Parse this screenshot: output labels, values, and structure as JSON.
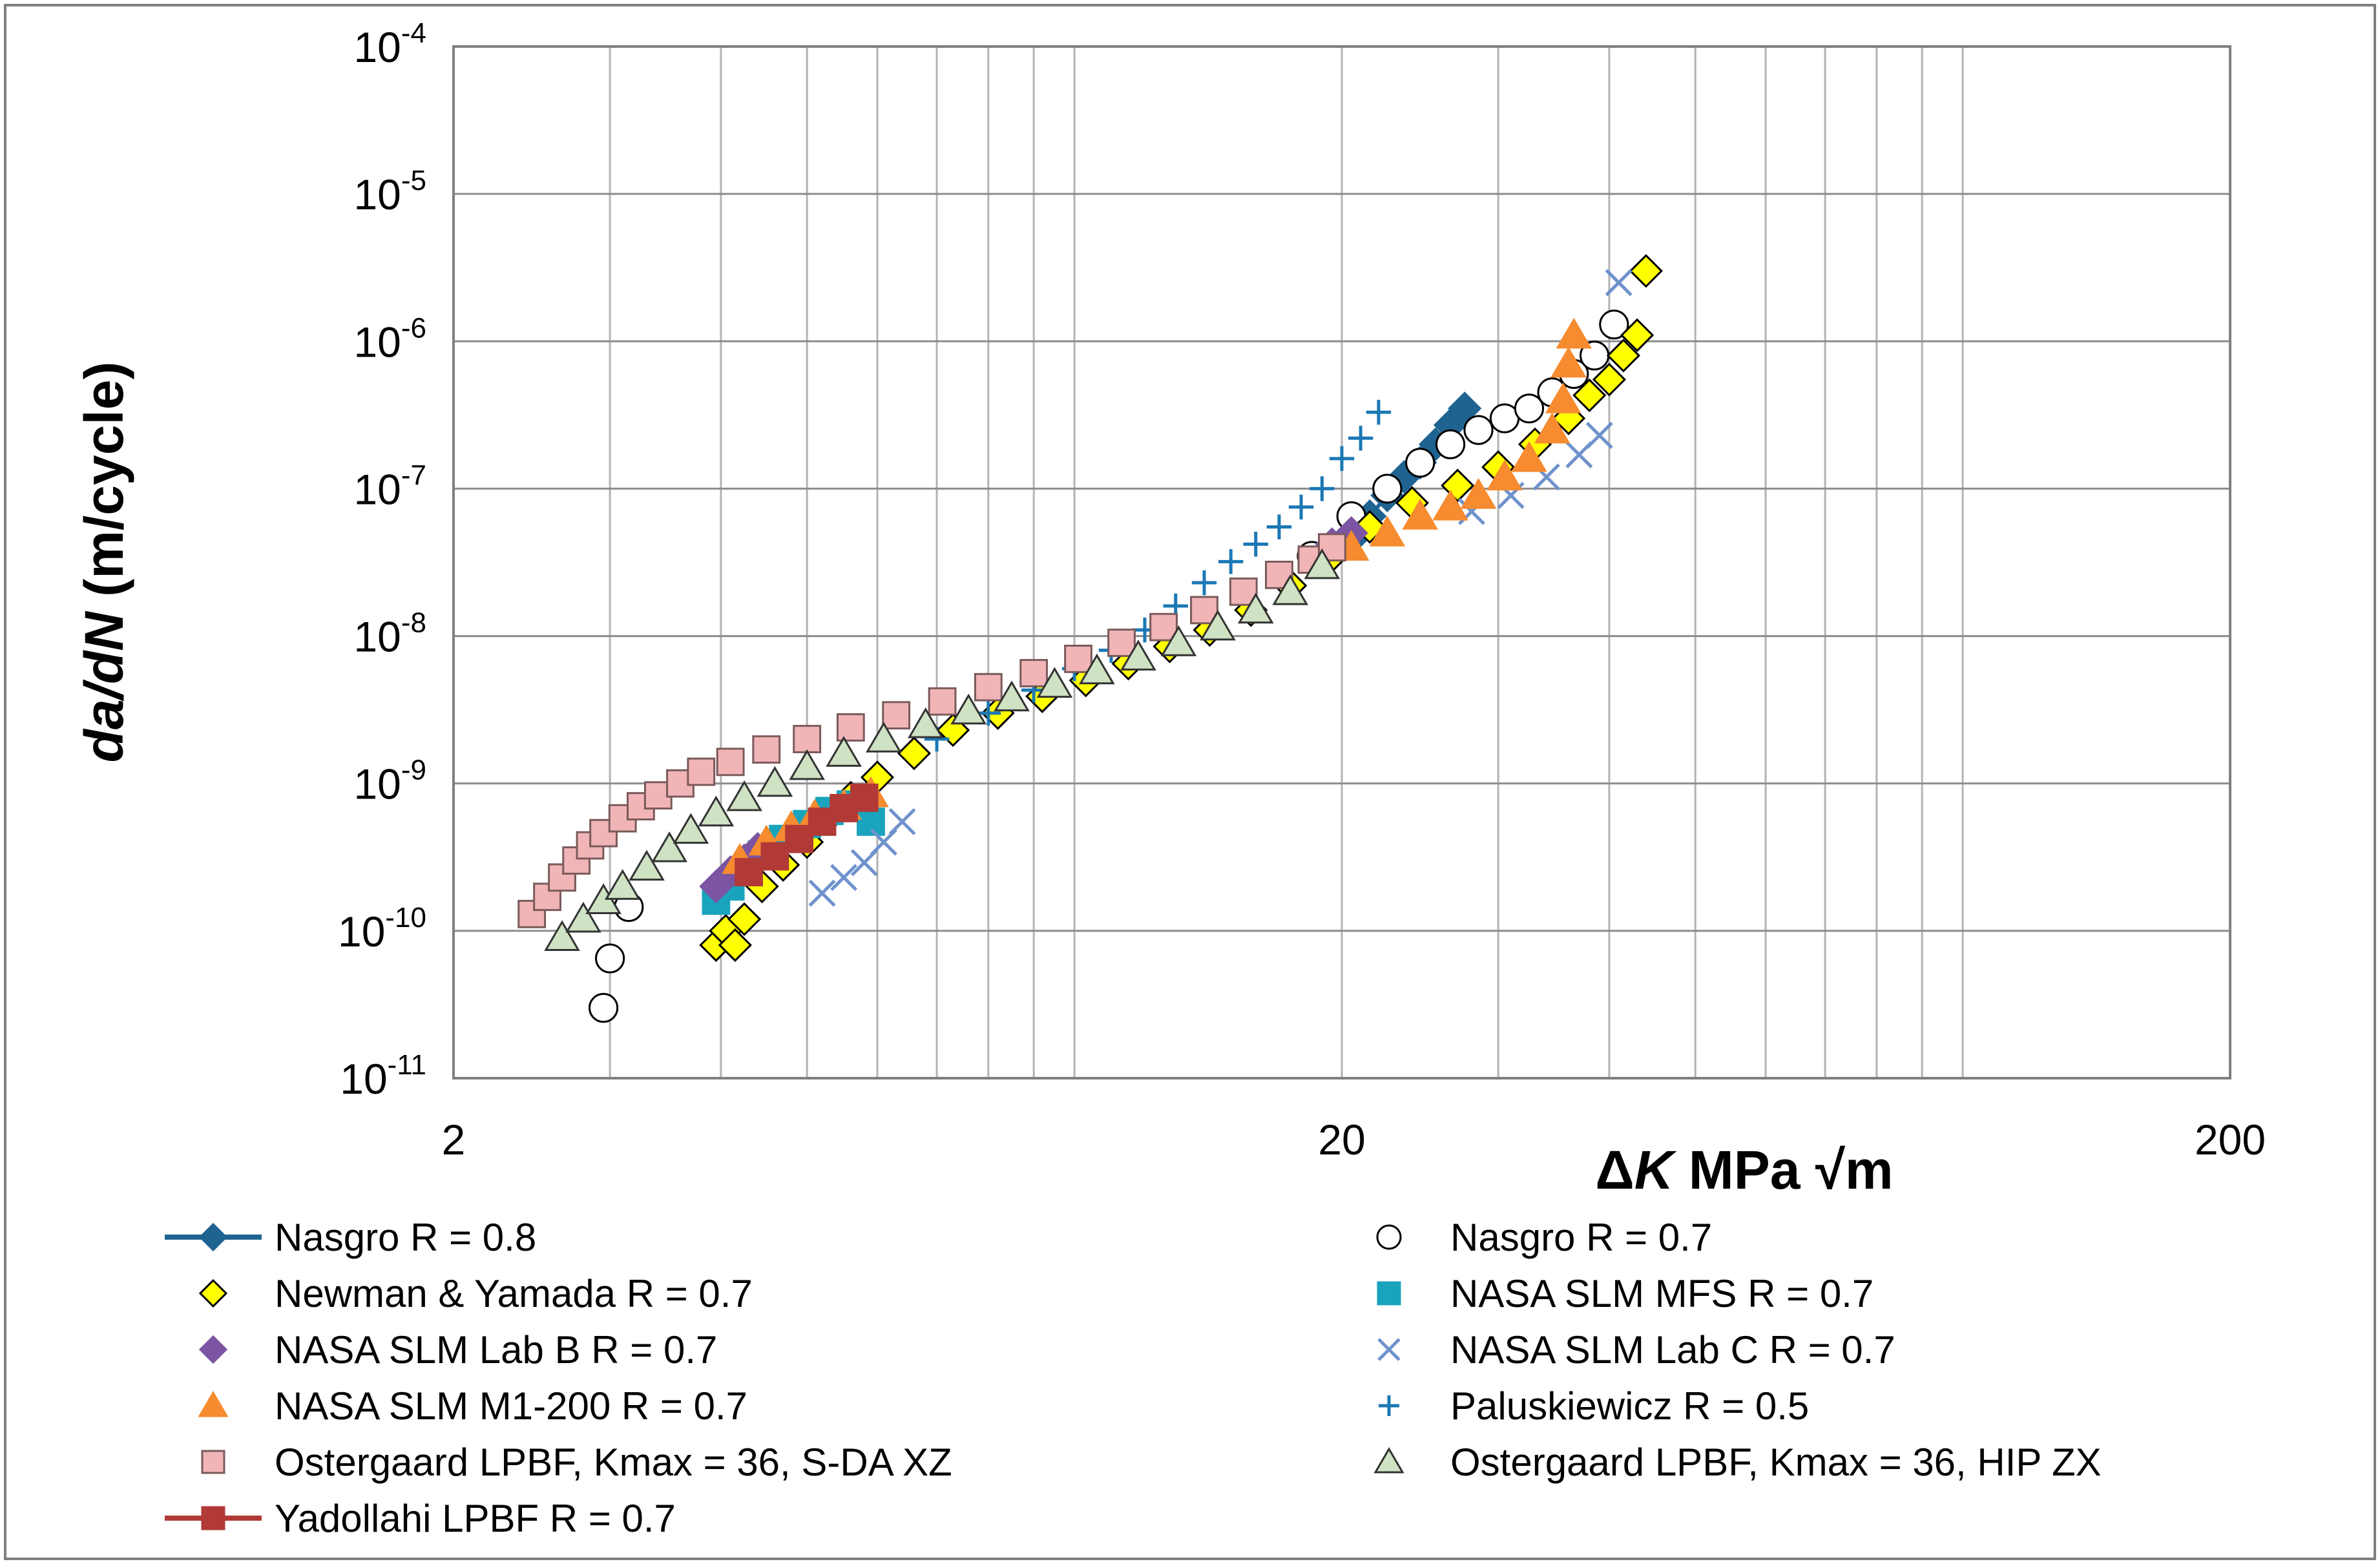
{
  "chart_data": {
    "type": "scatter",
    "xscale": "log",
    "yscale": "log",
    "xlim": [
      2,
      200
    ],
    "ylim": [
      1e-11,
      0.0001
    ],
    "x_ticks": [
      {
        "value": 2,
        "label": "2"
      },
      {
        "value": 20,
        "label": "20"
      },
      {
        "value": 200,
        "label": "200"
      }
    ],
    "y_ticks": [
      {
        "value": 0.0001,
        "base": "10",
        "exp": "-4"
      },
      {
        "value": 1e-05,
        "base": "10",
        "exp": "-5"
      },
      {
        "value": 1e-06,
        "base": "10",
        "exp": "-6"
      },
      {
        "value": 1e-07,
        "base": "10",
        "exp": "-7"
      },
      {
        "value": 1e-08,
        "base": "10",
        "exp": "-8"
      },
      {
        "value": 1e-09,
        "base": "10",
        "exp": "-9"
      },
      {
        "value": 1e-10,
        "base": "10",
        "exp": "-10"
      },
      {
        "value": 1e-11,
        "base": "10",
        "exp": "-11"
      }
    ],
    "ylabel": {
      "italic": "da/dN",
      "rest": " (m/cycle)"
    },
    "xlabel": {
      "delta": "Δ",
      "italic": "K",
      "rest": " MPa √m"
    },
    "grid": true,
    "legend_position": "bottom",
    "series": [
      {
        "name": "Nasgro R = 0.8",
        "marker": "diamond",
        "fill": "#1f6391",
        "stroke": "#1f6391",
        "line": true,
        "points": [
          [
            20.5,
            4.5e-08
          ],
          [
            21.5,
            6.5e-08
          ],
          [
            22.5,
            9e-08
          ],
          [
            23.5,
            1.2e-07
          ],
          [
            24.5,
            1.5e-07
          ],
          [
            25.5,
            2e-07
          ],
          [
            26.5,
            2.7e-07
          ],
          [
            27.5,
            3.5e-07
          ]
        ]
      },
      {
        "name": "Nasgro R = 0.7",
        "marker": "circle",
        "fill": "#ffffff",
        "stroke": "#000000",
        "line": false,
        "points": [
          [
            2.95,
            3e-11
          ],
          [
            3.0,
            6.5e-11
          ],
          [
            3.15,
            1.45e-10
          ],
          [
            18.5,
            3.5e-08
          ],
          [
            20.5,
            6.5e-08
          ],
          [
            22.5,
            1e-07
          ],
          [
            24.5,
            1.5e-07
          ],
          [
            26.5,
            2e-07
          ],
          [
            28.5,
            2.5e-07
          ],
          [
            30.5,
            3e-07
          ],
          [
            32.5,
            3.5e-07
          ],
          [
            34.5,
            4.5e-07
          ],
          [
            36.5,
            6e-07
          ],
          [
            38.5,
            8e-07
          ],
          [
            40.5,
            1.3e-06
          ]
        ]
      },
      {
        "name": "Newman & Yamada R = 0.7",
        "marker": "diamond",
        "fill": "#ffff00",
        "stroke": "#000000",
        "line": false,
        "points": [
          [
            3.95,
            8e-11
          ],
          [
            4.05,
            1e-10
          ],
          [
            4.15,
            8e-11
          ],
          [
            4.25,
            1.2e-10
          ],
          [
            4.45,
            2e-10
          ],
          [
            4.7,
            2.8e-10
          ],
          [
            5.0,
            4e-10
          ],
          [
            5.3,
            6e-10
          ],
          [
            5.6,
            8e-10
          ],
          [
            6.0,
            1.1e-09
          ],
          [
            6.6,
            1.6e-09
          ],
          [
            7.3,
            2.3e-09
          ],
          [
            8.2,
            3e-09
          ],
          [
            9.2,
            3.9e-09
          ],
          [
            10.3,
            5e-09
          ],
          [
            11.5,
            6.5e-09
          ],
          [
            12.8,
            8.5e-09
          ],
          [
            14.2,
            1.1e-08
          ],
          [
            15.8,
            1.5e-08
          ],
          [
            17.5,
            2.2e-08
          ],
          [
            19.5,
            3.5e-08
          ],
          [
            21.5,
            5.5e-08
          ],
          [
            24,
            8e-08
          ],
          [
            27,
            1.05e-07
          ],
          [
            30,
            1.4e-07
          ],
          [
            33,
            2e-07
          ],
          [
            36,
            3e-07
          ],
          [
            38,
            4.3e-07
          ],
          [
            40,
            5.5e-07
          ],
          [
            41.5,
            8e-07
          ],
          [
            43,
            1.1e-06
          ],
          [
            44,
            3e-06
          ]
        ]
      },
      {
        "name": "NASA SLM MFS R = 0.7",
        "marker": "square",
        "fill": "#1aa3bd",
        "stroke": "#1aa3bd",
        "line": false,
        "points": [
          [
            3.95,
            1.6e-10
          ],
          [
            4.1,
            2e-10
          ],
          [
            4.25,
            2.5e-10
          ],
          [
            4.45,
            3.3e-10
          ],
          [
            4.7,
            4.2e-10
          ],
          [
            5.0,
            5.3e-10
          ],
          [
            5.3,
            6.5e-10
          ],
          [
            5.6,
            7.2e-10
          ],
          [
            5.9,
            5.5e-10
          ]
        ]
      },
      {
        "name": "NASA SLM Lab B R = 0.7",
        "marker": "diamond",
        "fill": "#7b55a1",
        "stroke": "#7b55a1",
        "line": false,
        "points": [
          [
            3.95,
            2e-10
          ],
          [
            4.1,
            2.5e-10
          ],
          [
            4.25,
            3e-10
          ],
          [
            4.4,
            3.6e-10
          ],
          [
            19.5,
            4.2e-08
          ],
          [
            20.5,
            5e-08
          ]
        ]
      },
      {
        "name": "NASA SLM Lab C R = 0.7",
        "marker": "x",
        "fill": "none",
        "stroke": "#6e92cc",
        "line": false,
        "points": [
          [
            5.2,
            1.8e-10
          ],
          [
            5.5,
            2.3e-10
          ],
          [
            5.8,
            2.9e-10
          ],
          [
            6.1,
            4e-10
          ],
          [
            6.4,
            5.5e-10
          ],
          [
            28,
            7e-08
          ],
          [
            31,
            9e-08
          ],
          [
            34,
            1.2e-07
          ],
          [
            37,
            1.7e-07
          ],
          [
            39,
            2.3e-07
          ],
          [
            41,
            2.5e-06
          ]
        ]
      },
      {
        "name": "NASA SLM M1-200 R = 0.7",
        "marker": "triangle",
        "fill": "#f68b2f",
        "stroke": "#f68b2f",
        "line": false,
        "points": [
          [
            4.2,
            3e-10
          ],
          [
            4.5,
            4e-10
          ],
          [
            4.8,
            5e-10
          ],
          [
            5.1,
            6e-10
          ],
          [
            5.5,
            7e-10
          ],
          [
            5.9,
            8.5e-10
          ],
          [
            20.5,
            4e-08
          ],
          [
            22.5,
            5e-08
          ],
          [
            24.5,
            6.5e-08
          ],
          [
            26.5,
            7.5e-08
          ],
          [
            28.5,
            9e-08
          ],
          [
            30.5,
            1.2e-07
          ],
          [
            32.5,
            1.6e-07
          ],
          [
            34.5,
            2.5e-07
          ],
          [
            35.5,
            4e-07
          ],
          [
            36,
            7e-07
          ],
          [
            36.5,
            1.1e-06
          ]
        ]
      },
      {
        "name": "Paluskiewicz R = 0.5",
        "marker": "plus",
        "fill": "none",
        "stroke": "#1b78b5",
        "line": false,
        "points": [
          [
            7.0,
            2e-09
          ],
          [
            8.0,
            3e-09
          ],
          [
            9.0,
            4.3e-09
          ],
          [
            10.0,
            6e-09
          ],
          [
            11.0,
            8e-09
          ],
          [
            12.0,
            1.1e-08
          ],
          [
            13.0,
            1.6e-08
          ],
          [
            14.0,
            2.3e-08
          ],
          [
            15.0,
            3.2e-08
          ],
          [
            16.0,
            4.2e-08
          ],
          [
            17.0,
            5.5e-08
          ],
          [
            18.0,
            7.5e-08
          ],
          [
            19.0,
            1e-07
          ],
          [
            20.0,
            1.6e-07
          ],
          [
            21.0,
            2.2e-07
          ],
          [
            22.0,
            3.3e-07
          ]
        ]
      },
      {
        "name": "Ostergaard LPBF, Kmax = 36, S-DA XZ",
        "marker": "square",
        "fill": "#f1b5b7",
        "stroke": "#7a5a5b",
        "line": false,
        "points": [
          [
            2.45,
            1.3e-10
          ],
          [
            2.55,
            1.7e-10
          ],
          [
            2.65,
            2.3e-10
          ],
          [
            2.75,
            3e-10
          ],
          [
            2.85,
            3.8e-10
          ],
          [
            2.95,
            4.6e-10
          ],
          [
            3.1,
            5.8e-10
          ],
          [
            3.25,
            7e-10
          ],
          [
            3.4,
            8.3e-10
          ],
          [
            3.6,
            1e-09
          ],
          [
            3.8,
            1.2e-09
          ],
          [
            4.1,
            1.4e-09
          ],
          [
            4.5,
            1.7e-09
          ],
          [
            5.0,
            2e-09
          ],
          [
            5.6,
            2.4e-09
          ],
          [
            6.3,
            2.9e-09
          ],
          [
            7.1,
            3.6e-09
          ],
          [
            8.0,
            4.5e-09
          ],
          [
            9.0,
            5.6e-09
          ],
          [
            10.1,
            7e-09
          ],
          [
            11.3,
            9e-09
          ],
          [
            12.6,
            1.15e-08
          ],
          [
            14.0,
            1.5e-08
          ],
          [
            15.5,
            2e-08
          ],
          [
            17.0,
            2.6e-08
          ],
          [
            18.5,
            3.3e-08
          ],
          [
            19.5,
            4e-08
          ]
        ]
      },
      {
        "name": "Ostergaard LPBF, Kmax = 36, HIP ZX",
        "marker": "triangle",
        "fill": "#cfe2c3",
        "stroke": "#333333",
        "line": false,
        "points": [
          [
            2.65,
            9e-11
          ],
          [
            2.8,
            1.2e-10
          ],
          [
            2.95,
            1.6e-10
          ],
          [
            3.1,
            2e-10
          ],
          [
            3.3,
            2.7e-10
          ],
          [
            3.5,
            3.6e-10
          ],
          [
            3.7,
            4.8e-10
          ],
          [
            3.95,
            6.3e-10
          ],
          [
            4.25,
            8e-10
          ],
          [
            4.6,
            1e-09
          ],
          [
            5.0,
            1.3e-09
          ],
          [
            5.5,
            1.6e-09
          ],
          [
            6.1,
            2e-09
          ],
          [
            6.8,
            2.5e-09
          ],
          [
            7.6,
            3.1e-09
          ],
          [
            8.5,
            3.8e-09
          ],
          [
            9.5,
            4.7e-09
          ],
          [
            10.6,
            5.8e-09
          ],
          [
            11.8,
            7.2e-09
          ],
          [
            13.1,
            9e-09
          ],
          [
            14.5,
            1.15e-08
          ],
          [
            16.0,
            1.5e-08
          ],
          [
            17.5,
            2e-08
          ],
          [
            19.0,
            3e-08
          ]
        ]
      },
      {
        "name": "Yadollahi LPBF R = 0.7",
        "marker": "square",
        "fill": "#b23a36",
        "stroke": "#b23a36",
        "line": true,
        "points": [
          [
            4.3,
            2.5e-10
          ],
          [
            4.6,
            3.2e-10
          ],
          [
            4.9,
            4.2e-10
          ],
          [
            5.2,
            5.5e-10
          ],
          [
            5.5,
            6.8e-10
          ],
          [
            5.8,
            8e-10
          ]
        ]
      }
    ]
  }
}
